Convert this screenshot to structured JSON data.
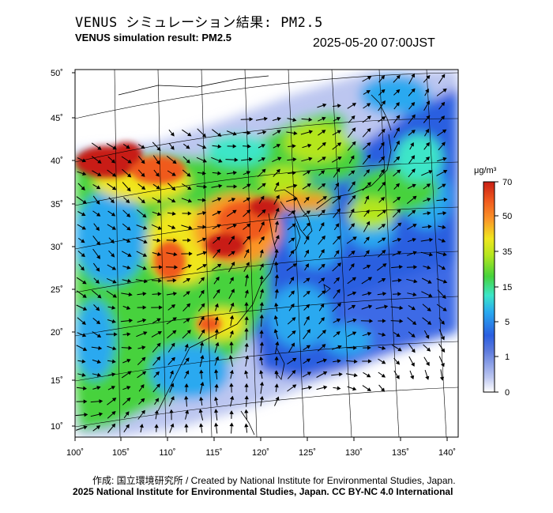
{
  "header": {
    "title_jp": "VENUS シミュレーション結果: PM2.5",
    "title_en": "VENUS simulation result: PM2.5",
    "timestamp": "2025-05-20 07:00JST"
  },
  "map": {
    "lat_labels": [
      "50˚",
      "45˚",
      "40˚",
      "35˚",
      "30˚",
      "25˚",
      "20˚",
      "15˚",
      "10˚"
    ],
    "lon_labels": [
      "100˚",
      "105˚",
      "110˚",
      "115˚",
      "120˚",
      "125˚",
      "130˚",
      "135˚",
      "140˚"
    ]
  },
  "colorbar": {
    "unit": "μg/m³",
    "tick_labels": [
      "70",
      "50",
      "35",
      "15",
      "5",
      "1",
      "0"
    ],
    "colors": [
      "#ffffff",
      "#bcc6f0",
      "#5a78dc",
      "#2a5ee0",
      "#29a9f0",
      "#3ce6c8",
      "#46d23c",
      "#b4e61e",
      "#f0e61e",
      "#fa9628",
      "#f05a1e",
      "#c81e14"
    ]
  },
  "footer": {
    "credit": "作成: 国立環境研究所 / Created by National Institute for Environmental Studies, Japan.",
    "license": "2025 National Institute for Environmental Studies, Japan. CC BY-NC 4.0 International"
  }
}
